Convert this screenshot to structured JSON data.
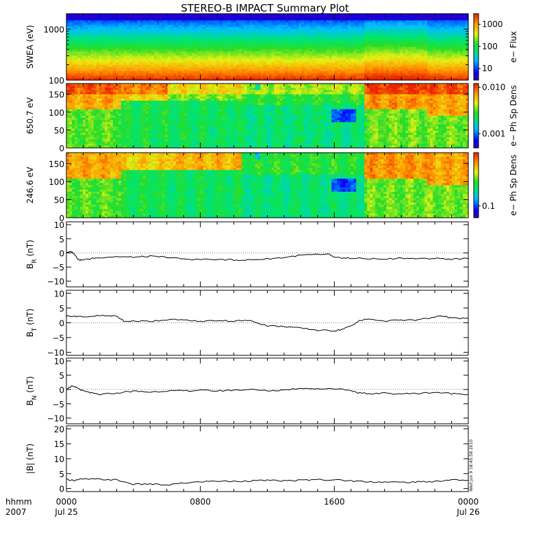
{
  "title": "STEREO-B IMPACT Summary Plot",
  "time_axis": {
    "row1_label": "hhmm",
    "row2_label": "2007",
    "ticks": [
      {
        "t": 0,
        "time": "0000",
        "date": "Jul 25"
      },
      {
        "t": 8,
        "time": "0800",
        "date": ""
      },
      {
        "t": 16,
        "time": "1600",
        "date": ""
      },
      {
        "t": 24,
        "time": "0000",
        "date": "Jul 26"
      }
    ]
  },
  "timestamp": "Wed Jun  9 18:45:58 2010",
  "colors": {
    "trace": "#000000",
    "axis": "#000000"
  },
  "chart_data": [
    {
      "type": "heatmap",
      "ylabel": "SWEA (eV)",
      "yscale": "log",
      "ylim": [
        100,
        2000
      ],
      "yticks": [
        100,
        1000
      ],
      "ytick_labels": [
        "100",
        "1000"
      ],
      "colorbar": {
        "label": "e− Flux",
        "scale": "log",
        "range": [
          3,
          3000
        ],
        "ticks": [
          10,
          100,
          1000
        ],
        "tick_labels": [
          "10",
          "100",
          "1000"
        ]
      },
      "note": "flux decreasing with energy; slightly higher flux 20–24 h"
    },
    {
      "type": "heatmap",
      "ylabel": "650.7 eV",
      "ylim": [
        0,
        180
      ],
      "yticks": [
        0,
        50,
        100,
        150
      ],
      "ytick_labels": [
        "0",
        "50",
        "100",
        "150"
      ],
      "colorbar": {
        "label": "e− Ph Sp Dens",
        "scale": "log",
        "range": [
          0.0005,
          0.012
        ],
        "ticks": [
          0.001,
          0.01
        ],
        "tick_labels": [
          "0.001",
          "0.010"
        ]
      }
    },
    {
      "type": "heatmap",
      "ylabel": "246.6 eV",
      "ylim": [
        0,
        180
      ],
      "yticks": [
        0,
        50,
        100,
        150
      ],
      "ytick_labels": [
        "0",
        "50",
        "100",
        "150"
      ],
      "colorbar": {
        "label": "e− Ph Sp Dens",
        "scale": "log",
        "range": [
          0.06,
          1.0
        ],
        "ticks": [
          0.1
        ],
        "tick_labels": [
          "0.1"
        ]
      }
    },
    {
      "type": "line",
      "ylabel_main": "B",
      "ylabel_sub": "R",
      "ylabel_unit": " (nT)",
      "ylim": [
        -12,
        11
      ],
      "yticks": [
        -10,
        -5,
        0,
        5,
        10
      ],
      "ytick_labels": [
        "−10",
        "−5",
        "0",
        "5",
        "10"
      ],
      "x": [
        0,
        0.3,
        0.5,
        0.7,
        0.9,
        1.5,
        2,
        3,
        4,
        5,
        6,
        7,
        8,
        9,
        10,
        11,
        12,
        13,
        14,
        15,
        15.7,
        16,
        16.5,
        17,
        18,
        19,
        20,
        21,
        22,
        23,
        24
      ],
      "values": [
        0.2,
        0.4,
        -0.5,
        -2.3,
        -2.6,
        -2.0,
        -1.6,
        -1.3,
        -1.5,
        -1.2,
        -1.5,
        -2.2,
        -2.3,
        -2.3,
        -2.5,
        -2.5,
        -2.1,
        -1.6,
        -0.8,
        -0.6,
        -0.5,
        -1.7,
        -1.8,
        -1.9,
        -2.0,
        -2.2,
        -1.8,
        -2.1,
        -1.9,
        -2.2,
        -2.0
      ]
    },
    {
      "type": "line",
      "ylabel_main": "B",
      "ylabel_sub": "T",
      "ylabel_unit": " (nT)",
      "ylim": [
        -11,
        11
      ],
      "yticks": [
        -10,
        -5,
        0,
        5,
        10
      ],
      "ytick_labels": [
        "−10",
        "−5",
        "0",
        "5",
        "10"
      ],
      "x": [
        0,
        0.5,
        1,
        2,
        3,
        3.5,
        4,
        5,
        6,
        7,
        8,
        9,
        10,
        11,
        12,
        13,
        14,
        15,
        16,
        16.5,
        17,
        17.5,
        18,
        19,
        20,
        21,
        22,
        22.5,
        23,
        24
      ],
      "values": [
        2.3,
        2.3,
        2.0,
        2.4,
        2.2,
        0.4,
        0.6,
        0.5,
        1.1,
        0.9,
        0.5,
        0.8,
        0.6,
        0.8,
        -1.0,
        -1.2,
        -1.8,
        -2.5,
        -2.7,
        -2.2,
        -1.0,
        0.7,
        1.3,
        0.7,
        0.8,
        1.0,
        1.9,
        2.4,
        1.5,
        1.6
      ]
    },
    {
      "type": "line",
      "ylabel_main": "B",
      "ylabel_sub": "N",
      "ylabel_unit": " (nT)",
      "ylim": [
        -12,
        11
      ],
      "yticks": [
        -10,
        -5,
        0,
        5,
        10
      ],
      "ytick_labels": [
        "−10",
        "−5",
        "0",
        "5",
        "10"
      ],
      "x": [
        0,
        0.3,
        0.6,
        1,
        1.5,
        2,
        3,
        4,
        5,
        6,
        7,
        8,
        9,
        10,
        11,
        12,
        13,
        14,
        15,
        16,
        17,
        17.5,
        18,
        19,
        20,
        21,
        22,
        23,
        24
      ],
      "values": [
        0.2,
        1.1,
        0.7,
        -0.5,
        -1.3,
        -1.8,
        -1.2,
        -0.6,
        -0.9,
        -0.5,
        -0.5,
        -0.3,
        -0.5,
        -0.2,
        0.0,
        -0.5,
        -0.2,
        0.5,
        0.2,
        0.4,
        -0.3,
        -1.3,
        -1.5,
        -1.3,
        -1.5,
        -1.4,
        -1.0,
        -1.4,
        -1.7
      ]
    },
    {
      "type": "line",
      "ylabel": "|B| (nT)",
      "ylim": [
        -1,
        21
      ],
      "yticks": [
        0,
        5,
        10,
        15,
        20
      ],
      "ytick_labels": [
        "0",
        "5",
        "10",
        "15",
        "20"
      ],
      "x": [
        0,
        0.5,
        1,
        2,
        3,
        4,
        5,
        6,
        7,
        8,
        9,
        10,
        11,
        12,
        13,
        14,
        15,
        16,
        17,
        18,
        19,
        20,
        21,
        22,
        23,
        24
      ],
      "values": [
        3.0,
        2.8,
        3.2,
        3.1,
        2.9,
        1.4,
        1.5,
        1.2,
        1.8,
        2.3,
        2.5,
        2.4,
        2.6,
        2.7,
        2.6,
        2.8,
        3.0,
        2.9,
        2.6,
        2.3,
        2.2,
        2.1,
        2.2,
        2.4,
        2.9,
        2.8
      ]
    }
  ]
}
